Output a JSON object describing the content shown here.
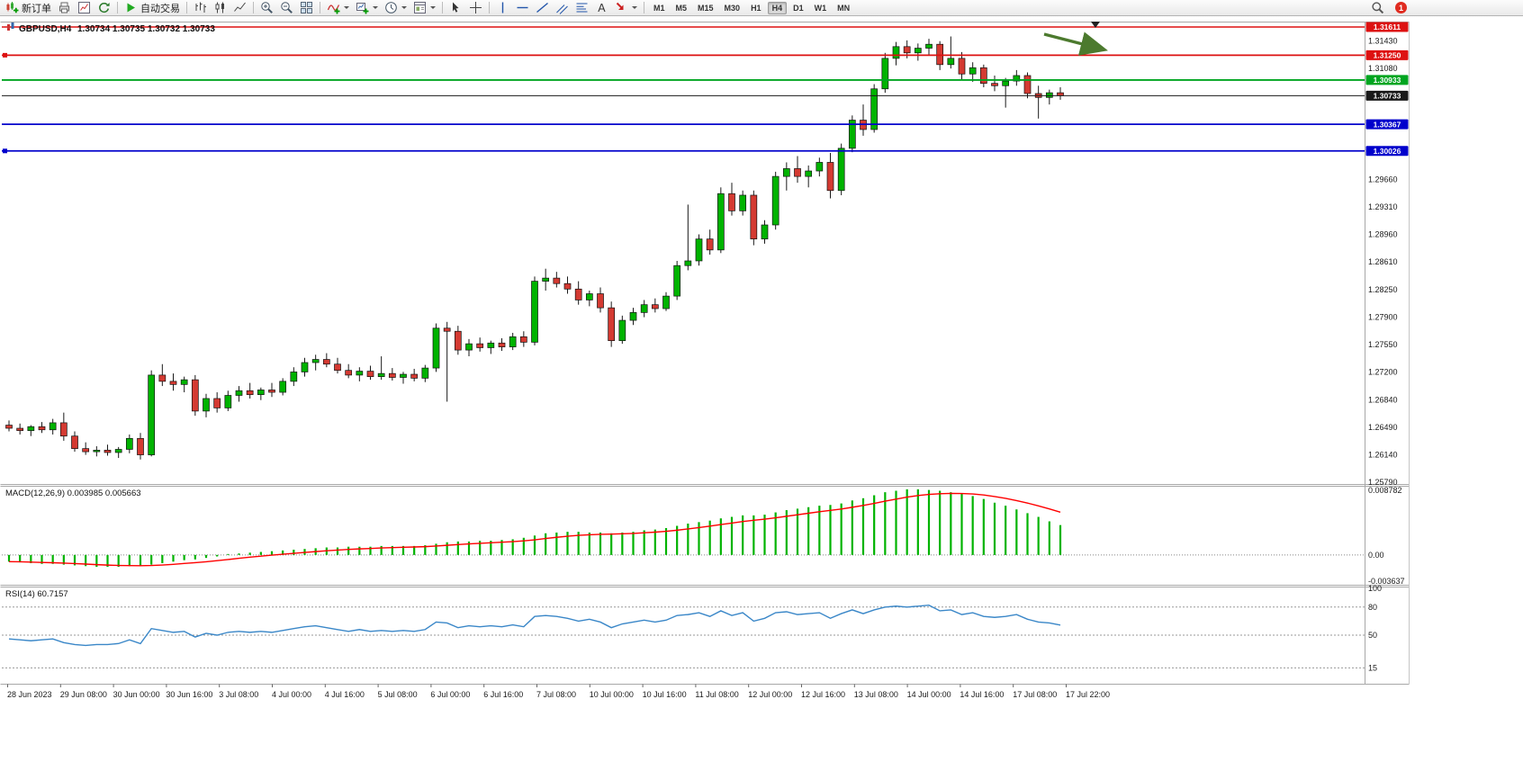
{
  "toolbar": {
    "new_order": "新订单",
    "auto_trading": "自动交易",
    "timeframes": [
      "M1",
      "M5",
      "M15",
      "M30",
      "H1",
      "H4",
      "D1",
      "W1",
      "MN"
    ],
    "active_timeframe": "H4",
    "notification_count": "1",
    "icons": [
      "new-order",
      "print",
      "market-watch",
      "refresh",
      "|",
      "auto-trading",
      "|",
      "bar-chart",
      "candle-chart",
      "line-chart",
      "|",
      "zoom-in",
      "zoom-out",
      "tile-windows",
      "|",
      "indicators",
      "add-chart",
      "periods",
      "templates",
      "|",
      "cursor",
      "crosshair",
      "|",
      "vertical-line",
      "horizontal-line",
      "trendline",
      "channel",
      "fibonacci",
      "text-tool",
      "arrow-tool",
      "|"
    ]
  },
  "chart": {
    "symbol_title": "GBPUSD,H4",
    "ohlc": "1.30734 1.30735 1.30732 1.30733",
    "hlines": [
      {
        "price": "1.31611",
        "value": 1.31611,
        "color": "#dd1111",
        "width": 1.5,
        "left_marker": false
      },
      {
        "price": "1.31250",
        "value": 1.3125,
        "color": "#dd1111",
        "width": 1.8,
        "left_marker": true
      },
      {
        "price": "1.30933",
        "value": 1.30933,
        "color": "#00a520",
        "width": 1.8,
        "left_marker": false
      },
      {
        "price": "1.30733",
        "value": 1.30733,
        "color": "#1a1a1a",
        "width": 1.0,
        "left_marker": false
      },
      {
        "price": "1.30367",
        "value": 1.30367,
        "color": "#0000cc",
        "width": 1.8,
        "left_marker": false
      },
      {
        "price": "1.30026",
        "value": 1.30026,
        "color": "#0000cc",
        "width": 1.8,
        "left_marker": true
      }
    ],
    "price_ticks": [
      "1.31430",
      "1.31080",
      "1.29660",
      "1.29310",
      "1.28960",
      "1.28610",
      "1.28250",
      "1.27900",
      "1.27550",
      "1.27200",
      "1.26840",
      "1.26490",
      "1.26140",
      "1.25790"
    ],
    "arrow_annotation": {
      "color": "#4c7a2e"
    },
    "colors": {
      "up": "#00b300",
      "down": "#d43a32",
      "wick": "#1a1a1a",
      "macd_hist": "#00b300",
      "macd_signal": "#ff0000",
      "rsi": "#3a87c8"
    }
  },
  "chart_data": {
    "type": "candlestick",
    "symbol": "GBPUSD",
    "period": "H4",
    "ylim": [
      1.2579,
      1.31611
    ],
    "time_labels": [
      "28 Jun 2023",
      "29 Jun 08:00",
      "30 Jun 00:00",
      "30 Jun 16:00",
      "3 Jul 08:00",
      "4 Jul 00:00",
      "4 Jul 16:00",
      "5 Jul 08:00",
      "6 Jul 00:00",
      "6 Jul 16:00",
      "7 Jul 08:00",
      "10 Jul 00:00",
      "10 Jul 16:00",
      "11 Jul 08:00",
      "12 Jul 00:00",
      "12 Jul 16:00",
      "13 Jul 08:00",
      "14 Jul 00:00",
      "14 Jul 16:00",
      "17 Jul 08:00",
      "17 Jul 22:00"
    ],
    "candles": [
      [
        1.2652,
        1.2658,
        1.2644,
        1.2648
      ],
      [
        1.2648,
        1.2654,
        1.264,
        1.2645
      ],
      [
        1.2645,
        1.2652,
        1.2638,
        1.265
      ],
      [
        1.265,
        1.2656,
        1.2642,
        1.2646
      ],
      [
        1.2646,
        1.266,
        1.264,
        1.2655
      ],
      [
        1.2655,
        1.2668,
        1.2632,
        1.2638
      ],
      [
        1.2638,
        1.2644,
        1.2618,
        1.2622
      ],
      [
        1.2622,
        1.263,
        1.2614,
        1.2618
      ],
      [
        1.2618,
        1.2625,
        1.2612,
        1.262
      ],
      [
        1.262,
        1.2627,
        1.2613,
        1.2617
      ],
      [
        1.2617,
        1.2624,
        1.261,
        1.2621
      ],
      [
        1.2621,
        1.264,
        1.2616,
        1.2635
      ],
      [
        1.2635,
        1.2642,
        1.2608,
        1.2614
      ],
      [
        1.2614,
        1.2722,
        1.2612,
        1.2716
      ],
      [
        1.2716,
        1.273,
        1.2702,
        1.2708
      ],
      [
        1.2708,
        1.2718,
        1.2696,
        1.2704
      ],
      [
        1.2704,
        1.2714,
        1.2694,
        1.271
      ],
      [
        1.271,
        1.2716,
        1.2664,
        1.267
      ],
      [
        1.267,
        1.2692,
        1.2662,
        1.2686
      ],
      [
        1.2686,
        1.2694,
        1.2668,
        1.2674
      ],
      [
        1.2674,
        1.2696,
        1.267,
        1.269
      ],
      [
        1.269,
        1.2702,
        1.2682,
        1.2696
      ],
      [
        1.2696,
        1.2706,
        1.2686,
        1.2691
      ],
      [
        1.2691,
        1.27,
        1.2684,
        1.2697
      ],
      [
        1.2697,
        1.2706,
        1.2688,
        1.2694
      ],
      [
        1.2694,
        1.2712,
        1.269,
        1.2708
      ],
      [
        1.2708,
        1.2726,
        1.2702,
        1.272
      ],
      [
        1.272,
        1.2738,
        1.2714,
        1.2732
      ],
      [
        1.2732,
        1.2742,
        1.2722,
        1.2736
      ],
      [
        1.2736,
        1.2744,
        1.2726,
        1.273
      ],
      [
        1.273,
        1.2738,
        1.2718,
        1.2722
      ],
      [
        1.2722,
        1.273,
        1.2712,
        1.2716
      ],
      [
        1.2716,
        1.2726,
        1.2708,
        1.2721
      ],
      [
        1.2721,
        1.2728,
        1.271,
        1.2714
      ],
      [
        1.2714,
        1.274,
        1.271,
        1.2718
      ],
      [
        1.2718,
        1.2725,
        1.2709,
        1.2713
      ],
      [
        1.2713,
        1.272,
        1.2705,
        1.2717
      ],
      [
        1.2717,
        1.2724,
        1.2708,
        1.2712
      ],
      [
        1.2712,
        1.2729,
        1.2707,
        1.2725
      ],
      [
        1.2725,
        1.2782,
        1.272,
        1.2776
      ],
      [
        1.2776,
        1.2784,
        1.2682,
        1.2772
      ],
      [
        1.2772,
        1.2779,
        1.2742,
        1.2748
      ],
      [
        1.2748,
        1.2762,
        1.274,
        1.2756
      ],
      [
        1.2756,
        1.2764,
        1.2746,
        1.2751
      ],
      [
        1.2751,
        1.276,
        1.2743,
        1.2757
      ],
      [
        1.2757,
        1.2763,
        1.2747,
        1.2752
      ],
      [
        1.2752,
        1.277,
        1.2748,
        1.2765
      ],
      [
        1.2765,
        1.2772,
        1.2752,
        1.2758
      ],
      [
        1.2758,
        1.2842,
        1.2754,
        1.2836
      ],
      [
        1.2836,
        1.2852,
        1.2824,
        1.284
      ],
      [
        1.284,
        1.2848,
        1.2828,
        1.2833
      ],
      [
        1.2833,
        1.2842,
        1.282,
        1.2826
      ],
      [
        1.2826,
        1.2836,
        1.2806,
        1.2812
      ],
      [
        1.2812,
        1.2824,
        1.2804,
        1.282
      ],
      [
        1.282,
        1.2828,
        1.2796,
        1.2802
      ],
      [
        1.2802,
        1.281,
        1.2752,
        1.276
      ],
      [
        1.276,
        1.2792,
        1.2756,
        1.2786
      ],
      [
        1.2786,
        1.2802,
        1.278,
        1.2796
      ],
      [
        1.2796,
        1.2812,
        1.279,
        1.2806
      ],
      [
        1.2806,
        1.2814,
        1.2796,
        1.2801
      ],
      [
        1.2801,
        1.2822,
        1.2798,
        1.2817
      ],
      [
        1.2817,
        1.2862,
        1.2812,
        1.2856
      ],
      [
        1.2856,
        1.2934,
        1.285,
        1.2862
      ],
      [
        1.2862,
        1.2896,
        1.2856,
        1.289
      ],
      [
        1.289,
        1.2902,
        1.287,
        1.2876
      ],
      [
        1.2876,
        1.2956,
        1.2872,
        1.2948
      ],
      [
        1.2948,
        1.2962,
        1.292,
        1.2926
      ],
      [
        1.2926,
        1.2952,
        1.292,
        1.2946
      ],
      [
        1.2946,
        1.2952,
        1.2882,
        1.289
      ],
      [
        1.289,
        1.2914,
        1.2884,
        1.2908
      ],
      [
        1.2908,
        1.2976,
        1.2902,
        1.297
      ],
      [
        1.297,
        1.2988,
        1.2952,
        1.298
      ],
      [
        1.298,
        1.2996,
        1.2962,
        1.297
      ],
      [
        1.297,
        1.2984,
        1.2956,
        1.2977
      ],
      [
        1.2977,
        1.2994,
        1.297,
        1.2988
      ],
      [
        1.2988,
        1.3,
        1.2942,
        1.2952
      ],
      [
        1.2952,
        1.3012,
        1.2946,
        1.3006
      ],
      [
        1.3006,
        1.3048,
        1.3001,
        1.3042
      ],
      [
        1.3042,
        1.3062,
        1.3022,
        1.303
      ],
      [
        1.303,
        1.3088,
        1.3026,
        1.3082
      ],
      [
        1.3082,
        1.3128,
        1.3077,
        1.3121
      ],
      [
        1.3121,
        1.3142,
        1.3112,
        1.3136
      ],
      [
        1.3136,
        1.3144,
        1.3121,
        1.3128
      ],
      [
        1.3128,
        1.314,
        1.3118,
        1.3134
      ],
      [
        1.3134,
        1.3146,
        1.3126,
        1.3139
      ],
      [
        1.3139,
        1.3143,
        1.3106,
        1.3113
      ],
      [
        1.3113,
        1.3149,
        1.3108,
        1.3121
      ],
      [
        1.3121,
        1.3129,
        1.3094,
        1.3101
      ],
      [
        1.3101,
        1.3116,
        1.3091,
        1.3109
      ],
      [
        1.3109,
        1.3113,
        1.3084,
        1.3089
      ],
      [
        1.3089,
        1.3099,
        1.3079,
        1.3086
      ],
      [
        1.3086,
        1.3096,
        1.3058,
        1.3092
      ],
      [
        1.3092,
        1.3106,
        1.3086,
        1.3099
      ],
      [
        1.3099,
        1.3103,
        1.307,
        1.3076
      ],
      [
        1.3076,
        1.3086,
        1.3044,
        1.3071
      ],
      [
        1.3071,
        1.3081,
        1.3062,
        1.3077
      ],
      [
        1.3077,
        1.3084,
        1.3068,
        1.30733
      ]
    ],
    "macd": {
      "label": "MACD(12,26,9) 0.003985 0.005663",
      "axis_max": "0.008782",
      "axis_zero": "0.00",
      "axis_min": "-0.003637",
      "vmax": 0.008782,
      "vmin": -0.003637,
      "hist": [
        -0.0009,
        -0.001,
        -0.0011,
        -0.0012,
        -0.0012,
        -0.0013,
        -0.0014,
        -0.0015,
        -0.0016,
        -0.0016,
        -0.0016,
        -0.0015,
        -0.0015,
        -0.0013,
        -0.0011,
        -0.0009,
        -0.0007,
        -0.0006,
        -0.0004,
        -0.0002,
        0,
        0.0002,
        0.0003,
        0.0004,
        0.0005,
        0.0006,
        0.0007,
        0.0008,
        0.0009,
        0.001,
        0.001,
        0.0011,
        0.0011,
        0.0011,
        0.0012,
        0.0012,
        0.0012,
        0.0012,
        0.0013,
        0.0015,
        0.0017,
        0.0018,
        0.0018,
        0.0019,
        0.0019,
        0.002,
        0.0021,
        0.0023,
        0.0026,
        0.0029,
        0.003,
        0.0031,
        0.0031,
        0.003,
        0.003,
        0.0029,
        0.003,
        0.0031,
        0.0033,
        0.0034,
        0.0036,
        0.0039,
        0.0042,
        0.0044,
        0.0046,
        0.0049,
        0.0051,
        0.0053,
        0.0053,
        0.0054,
        0.0057,
        0.006,
        0.0062,
        0.0064,
        0.0066,
        0.0067,
        0.0069,
        0.0073,
        0.0076,
        0.008,
        0.0084,
        0.0086,
        0.0088,
        0.0088,
        0.0087,
        0.0086,
        0.0084,
        0.0082,
        0.0079,
        0.0075,
        0.007,
        0.0066,
        0.0061,
        0.0056,
        0.0051,
        0.0045,
        0.004
      ]
    },
    "rsi": {
      "label": "RSI(14) 60.7157",
      "levels": [
        80,
        50,
        15
      ],
      "axis_labels": [
        "100",
        "80",
        "50",
        "15"
      ],
      "values": [
        46,
        45,
        44,
        45,
        46,
        42,
        40,
        39,
        40,
        40,
        41,
        45,
        41,
        57,
        55,
        53,
        54,
        48,
        52,
        50,
        53,
        54,
        53,
        54,
        53,
        55,
        57,
        59,
        60,
        58,
        56,
        54,
        56,
        54,
        55,
        54,
        55,
        54,
        56,
        64,
        63,
        58,
        60,
        59,
        60,
        59,
        61,
        59,
        70,
        71,
        70,
        68,
        65,
        67,
        64,
        58,
        62,
        64,
        66,
        64,
        66,
        71,
        72,
        74,
        70,
        76,
        71,
        74,
        65,
        68,
        74,
        75,
        72,
        73,
        74,
        68,
        73,
        77,
        73,
        77,
        80,
        81,
        80,
        81,
        82,
        76,
        77,
        72,
        74,
        70,
        69,
        70,
        72,
        67,
        64,
        63,
        60.7
      ]
    }
  }
}
